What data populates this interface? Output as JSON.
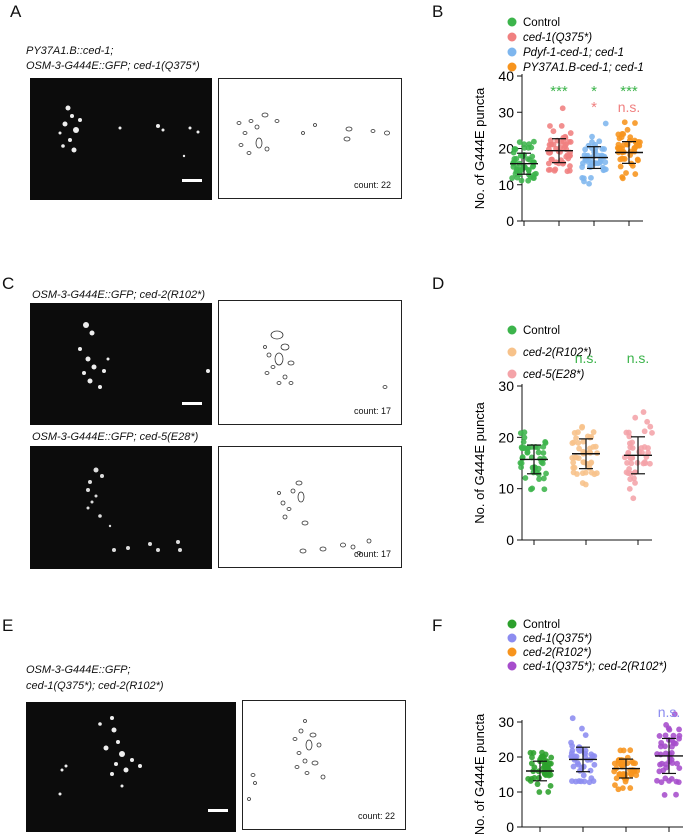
{
  "panels": {
    "A": {
      "letter": "A",
      "caption1": "PY37A1.B::ced-1;",
      "caption2": "OSM-3-G444E::GFP; ced-1(Q375*)",
      "count": "count: 22"
    },
    "B": {
      "letter": "B"
    },
    "C": {
      "letter": "C",
      "caption_top": "OSM-3-G444E::GFP; ced-2(R102*)",
      "count_top": "count: 17",
      "caption_bottom": "OSM-3-G444E::GFP; ced-5(E28*)",
      "count_bottom": "count: 17"
    },
    "D": {
      "letter": "D"
    },
    "E": {
      "letter": "E",
      "caption1": "OSM-3-G444E::GFP;",
      "caption2": "ced-1(Q375*); ced-2(R102*)",
      "count": "count: 22"
    },
    "F": {
      "letter": "F"
    }
  },
  "chart_data": [
    {
      "id": "B",
      "type": "scatter",
      "ylabel": "No. of G444E puncta",
      "ylim": [
        0,
        40
      ],
      "yticks": [
        0,
        10,
        20,
        30,
        40
      ],
      "legend": [
        "Control",
        "ced-1(Q375*)",
        "Pdyf-1-ced-1; ced-1",
        "PY37A1.B-ced-1; ced-1"
      ],
      "colors": [
        "#3cb44b",
        "#f08080",
        "#7eb6ee",
        "#f7941d"
      ],
      "series": [
        {
          "name": "Control",
          "mean": 15.8,
          "sd": 2.9,
          "min": 11,
          "max": 22
        },
        {
          "name": "ced-1(Q375*)",
          "mean": 19.4,
          "sd": 3.3,
          "min": 14,
          "max": 31
        },
        {
          "name": "Pdyf-1-ced-1; ced-1",
          "mean": 17.5,
          "sd": 3.0,
          "min": 10,
          "max": 27
        },
        {
          "name": "PY37A1.B-ced-1; ced-1",
          "mean": 18.9,
          "sd": 3.0,
          "min": 12,
          "max": 27
        }
      ],
      "annotations": [
        {
          "group": 1,
          "text": "***",
          "color": "#3cb44b",
          "row": 0
        },
        {
          "group": 2,
          "text": "*",
          "color": "#3cb44b",
          "row": 0
        },
        {
          "group": 2,
          "text": "*",
          "color": "#f08080",
          "row": 1
        },
        {
          "group": 3,
          "text": "***",
          "color": "#3cb44b",
          "row": 0
        },
        {
          "group": 3,
          "text": "n.s.",
          "color": "#f08080",
          "row": 1
        }
      ]
    },
    {
      "id": "D",
      "type": "scatter",
      "ylabel": "No. of G444E puncta",
      "ylim": [
        0,
        30
      ],
      "yticks": [
        0,
        10,
        20,
        30
      ],
      "legend": [
        "Control",
        "ced-2(R102*)",
        "ced-5(E28*)"
      ],
      "colors": [
        "#3cb44b",
        "#f7c28a",
        "#f4a3a8"
      ],
      "series": [
        {
          "name": "Control",
          "mean": 15.7,
          "sd": 2.8,
          "min": 10,
          "max": 21
        },
        {
          "name": "ced-2(R102*)",
          "mean": 16.8,
          "sd": 2.9,
          "min": 11,
          "max": 22
        },
        {
          "name": "ced-5(E28*)",
          "mean": 16.5,
          "sd": 3.6,
          "min": 8,
          "max": 25
        }
      ],
      "annotations": [
        {
          "group": 1,
          "text": "n.s.",
          "color": "#3cb44b",
          "row": 0
        },
        {
          "group": 2,
          "text": "n.s.",
          "color": "#3cb44b",
          "row": 0
        }
      ]
    },
    {
      "id": "F",
      "type": "scatter",
      "ylabel": "No. of G444E puncta",
      "ylim": [
        0,
        30
      ],
      "yticks": [
        0,
        10,
        20,
        30
      ],
      "legend": [
        "Control",
        "ced-1(Q375*)",
        "ced-2(R102*)",
        "ced-1(Q375*); ced-2(R102*)"
      ],
      "colors": [
        "#2ca02c",
        "#8c8cf0",
        "#f7941d",
        "#a64dcc"
      ],
      "series": [
        {
          "name": "Control",
          "mean": 16.0,
          "sd": 2.8,
          "min": 10,
          "max": 21
        },
        {
          "name": "ced-1(Q375*)",
          "mean": 19.3,
          "sd": 3.5,
          "min": 13,
          "max": 31
        },
        {
          "name": "ced-2(R102*)",
          "mean": 16.7,
          "sd": 2.7,
          "min": 11,
          "max": 22
        },
        {
          "name": "ced-1(Q375*); ced-2(R102*)",
          "mean": 20.3,
          "sd": 5.0,
          "min": 9,
          "max": 32
        }
      ],
      "annotations": [
        {
          "group": 3,
          "text": "n.s.",
          "color": "#8c8cf0",
          "row": 0
        }
      ]
    }
  ]
}
